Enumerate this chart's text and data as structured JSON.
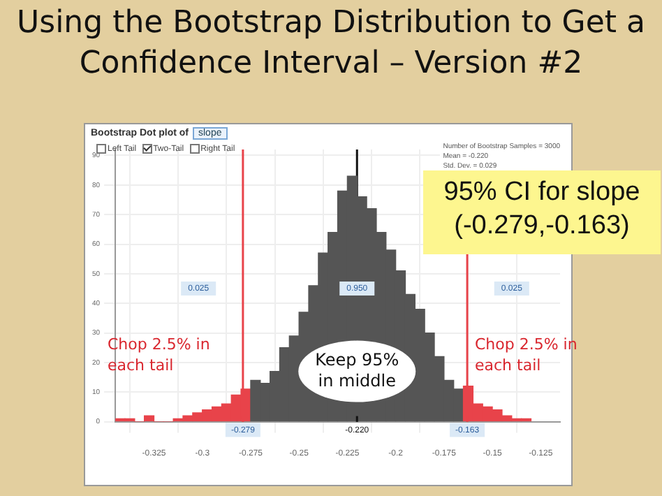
{
  "chart_data": {
    "type": "histogram",
    "title": "Using the Bootstrap Distribution to Get a Confidence Interval – Version #2",
    "subtitle": "Bootstrap Dot plot of",
    "bins": [
      -0.345,
      -0.34,
      -0.335,
      -0.33,
      -0.325,
      -0.32,
      -0.315,
      -0.31,
      -0.305,
      -0.3,
      -0.295,
      -0.29,
      -0.285,
      -0.28,
      -0.275,
      -0.27,
      -0.265,
      -0.26,
      -0.255,
      -0.25,
      -0.245,
      -0.24,
      -0.235,
      -0.23,
      -0.225,
      -0.22,
      -0.215,
      -0.21,
      -0.205,
      -0.2,
      -0.195,
      -0.19,
      -0.185,
      -0.18,
      -0.175,
      -0.17,
      -0.165,
      -0.16,
      -0.155,
      -0.15,
      -0.145,
      -0.14,
      -0.135,
      -0.13
    ],
    "values": [
      1,
      1,
      0,
      2,
      0,
      0,
      1,
      2,
      3,
      4,
      5,
      6,
      9,
      11,
      14,
      13,
      17,
      25,
      29,
      37,
      46,
      57,
      64,
      78,
      83,
      76,
      72,
      64,
      58,
      51,
      43,
      38,
      30,
      22,
      14,
      11,
      12,
      6,
      5,
      4,
      2,
      1,
      1
    ],
    "colors": [
      "#e8434a",
      "#e8434a",
      "#e8434a",
      "#e8434a",
      "#e8434a",
      "#e8434a",
      "#e8434a",
      "#e8434a",
      "#e8434a",
      "#e8434a",
      "#e8434a",
      "#e8434a",
      "#e8434a",
      "#e8434a",
      "#555555",
      "#555555",
      "#555555",
      "#555555",
      "#555555",
      "#555555",
      "#555555",
      "#555555",
      "#555555",
      "#555555",
      "#555555",
      "#555555",
      "#555555",
      "#555555",
      "#555555",
      "#555555",
      "#555555",
      "#555555",
      "#555555",
      "#555555",
      "#555555",
      "#555555",
      "#e8434a",
      "#e8434a",
      "#e8434a",
      "#e8434a",
      "#e8434a",
      "#e8434a",
      "#e8434a"
    ],
    "xlim": [
      -0.345,
      -0.115
    ],
    "xticks": [
      -0.325,
      -0.3,
      -0.275,
      -0.25,
      -0.225,
      -0.2,
      -0.175,
      -0.15,
      -0.125
    ],
    "ylim": [
      0,
      92
    ],
    "yticks": [
      0,
      10,
      20,
      30,
      40,
      50,
      60,
      70,
      80,
      90
    ],
    "grid": true,
    "ref_lines": [
      {
        "axis": "x",
        "value": -0.279,
        "label": "-0.279",
        "color": "#e8434a"
      },
      {
        "axis": "x",
        "value": -0.22,
        "label": "-0.220",
        "color": "#111111"
      },
      {
        "axis": "x",
        "value": -0.163,
        "label": "-0.163",
        "color": "#e8434a"
      }
    ],
    "annotations": [
      "slope",
      "Left Tail",
      "Two-Tail",
      "Right Tail",
      "Number of Bootstrap Samples = 3000",
      "Mean = -0.220",
      "Std. Dev. = 0.029",
      "95% CI for slope\n(-0.279,-0.163)",
      {
        "text": "0.025",
        "x": -0.302,
        "y": 45
      },
      {
        "text": "0.950",
        "x": -0.22,
        "y": 45
      },
      {
        "text": "0.025",
        "x": -0.14,
        "y": 45
      },
      "Chop 2.5% in\neach tail",
      "Chop 2.5% in\neach tail",
      {
        "text": "Keep 95%\nin middle",
        "x": -0.22,
        "y": 17
      }
    ]
  }
}
